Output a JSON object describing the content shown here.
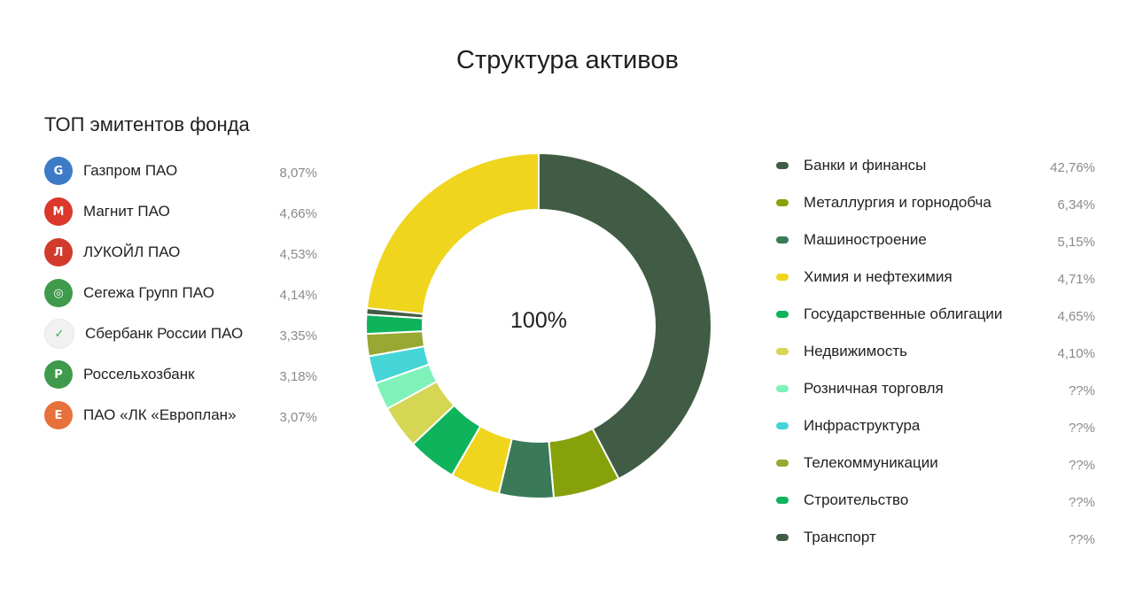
{
  "page": {
    "title": "Структура активов",
    "issuers_title": "ТОП эмитентов фонда"
  },
  "issuers": [
    {
      "name": "Газпром ПАО",
      "value": "8,07%",
      "icon": "gazprom-logo-icon",
      "color": "#3d7bc6",
      "glyph": "G"
    },
    {
      "name": "Магнит ПАО",
      "value": "4,66%",
      "icon": "magnit-logo-icon",
      "color": "#d9382b",
      "glyph": "М"
    },
    {
      "name": "ЛУКОЙЛ ПАО",
      "value": "4,53%",
      "icon": "lukoil-logo-icon",
      "color": "#d23a2c",
      "glyph": "Л"
    },
    {
      "name": "Сегежа Групп ПАО",
      "value": "4,14%",
      "icon": "segezha-logo-icon",
      "color": "#3f9a4c",
      "glyph": "◎"
    },
    {
      "name": "Сбербанк России ПАО",
      "value": "3,35%",
      "icon": "sberbank-logo-icon",
      "color": "#f1f1f1",
      "glyph": "✓"
    },
    {
      "name": "Россельхозбанк",
      "value": "3,18%",
      "icon": "rosselkhozbank-logo-icon",
      "color": "#3f9a4c",
      "glyph": "Р"
    },
    {
      "name": "ПАО «ЛК «Европлан»",
      "value": "3,07%",
      "icon": "europlan-logo-icon",
      "color": "#e8703a",
      "glyph": "Е"
    }
  ],
  "chart_data": {
    "type": "pie",
    "title": "Структура активов",
    "center_label": "100%",
    "legend_placement": "right",
    "series": [
      {
        "name": "Банки и финансы",
        "value": 42.76,
        "label": "42,76%",
        "color": "#415c44"
      },
      {
        "name": "Металлургия и горнодобча",
        "value": 6.34,
        "label": "6,34%",
        "color": "#87a10a"
      },
      {
        "name": "Машиностроение",
        "value": 5.15,
        "label": "5,15%",
        "color": "#3a7a58"
      },
      {
        "name": "Химия и нефтехимия",
        "value": 4.71,
        "label": "4,71%",
        "color": "#efd51d"
      },
      {
        "name": "Государственные облигации",
        "value": 4.65,
        "label": "4,65%",
        "color": "#0fb35c"
      },
      {
        "name": "Недвижимость",
        "value": 4.1,
        "label": "4,10%",
        "color": "#d4d654"
      },
      {
        "name": "Розничная торговля",
        "value": 2.6,
        "label": "??%",
        "color": "#7ef2b8"
      },
      {
        "name": "Инфраструктура",
        "value": 2.6,
        "label": "??%",
        "color": "#46d5d6"
      },
      {
        "name": "Телекоммуникации",
        "value": 2.1,
        "label": "??%",
        "color": "#99a832"
      },
      {
        "name": "Строительство",
        "value": 1.8,
        "label": "??%",
        "color": "#0fb35c"
      },
      {
        "name": "Транспорт",
        "value": 0.6,
        "label": "??%",
        "color": "#415c44"
      },
      {
        "name": "",
        "value": 23.6,
        "label": "",
        "color": "#efd51d"
      }
    ]
  }
}
